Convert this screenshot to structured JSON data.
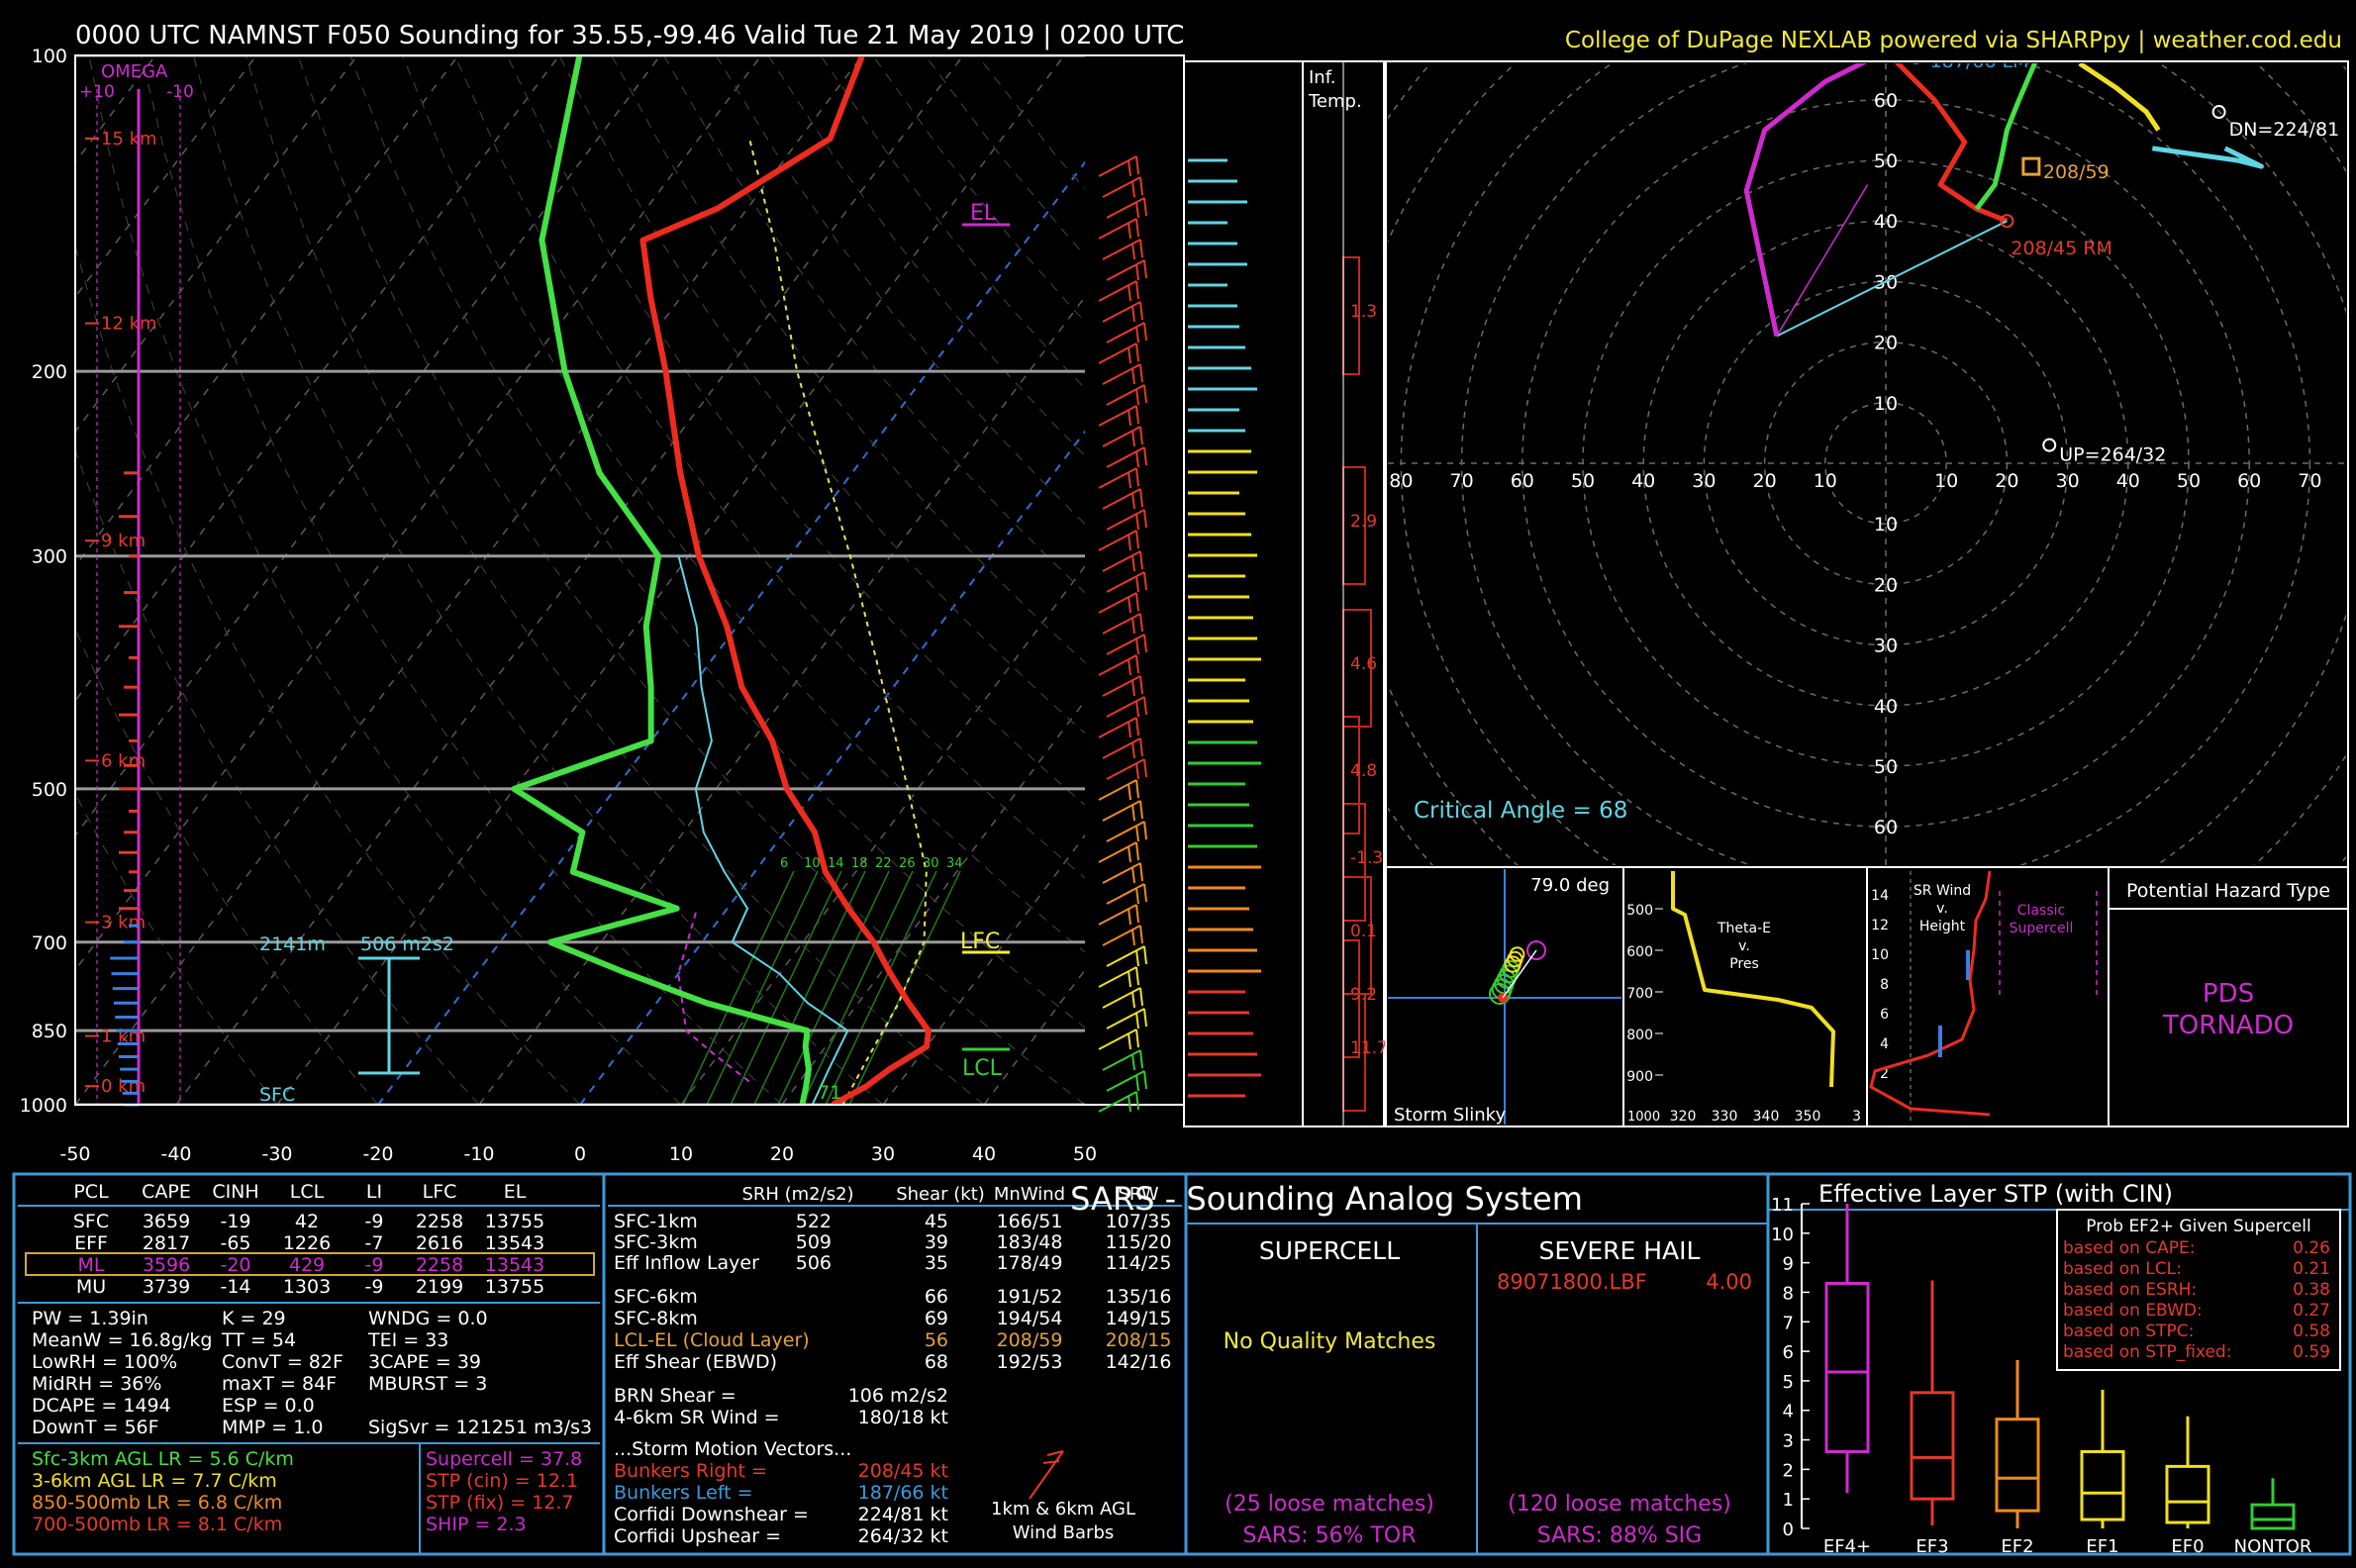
{
  "header": {
    "title": "0000 UTC NAMNST F050 Sounding for 35.55,-99.46 Valid  Tue 21 May 2019 | 0200 UTC",
    "credit": "College of DuPage NEXLAB powered via SHARPpy | weather.cod.edu"
  },
  "skewt": {
    "pressure_levels": [
      100,
      200,
      300,
      500,
      700,
      850,
      1000
    ],
    "temp_ticks": [
      -50,
      -40,
      -30,
      -20,
      -10,
      0,
      10,
      20,
      30,
      40,
      50
    ],
    "omega_label": "OMEGA",
    "omega_left": "+10",
    "omega_right": "-10",
    "height_labels": [
      "15 km",
      "12 km",
      "9 km",
      "6 km",
      "3 km",
      "1 km",
      "0 km"
    ],
    "height_pressures": [
      120,
      180,
      290,
      470,
      670,
      860,
      960
    ],
    "el_label": "EL",
    "lfc_label": "LFC",
    "lcl_label": "LCL",
    "el_pressure": 140,
    "lfc_pressure": 700,
    "lcl_pressure": 920,
    "eff_inflow_top": "2141m",
    "eff_srh": "506 m2s2",
    "sfc_label": "SFC",
    "sfc_temp": "71",
    "hail_isotherms": [
      "6",
      "10",
      "14",
      "18",
      "22",
      "26",
      "30",
      "34"
    ],
    "temperature": [
      [
        1000,
        25
      ],
      [
        960,
        27
      ],
      [
        925,
        28
      ],
      [
        880,
        30
      ],
      [
        850,
        29
      ],
      [
        800,
        25
      ],
      [
        750,
        21
      ],
      [
        700,
        17
      ],
      [
        650,
        12
      ],
      [
        600,
        7
      ],
      [
        550,
        3
      ],
      [
        500,
        -3
      ],
      [
        450,
        -8
      ],
      [
        400,
        -15
      ],
      [
        350,
        -21
      ],
      [
        300,
        -29
      ],
      [
        250,
        -37
      ],
      [
        200,
        -46
      ],
      [
        170,
        -53
      ],
      [
        150,
        -58
      ],
      [
        140,
        -53
      ],
      [
        120,
        -47
      ],
      [
        100,
        -50
      ]
    ],
    "dewpoint": [
      [
        1000,
        22
      ],
      [
        960,
        21
      ],
      [
        925,
        20
      ],
      [
        880,
        18
      ],
      [
        850,
        17
      ],
      [
        800,
        5
      ],
      [
        750,
        -5
      ],
      [
        700,
        -15
      ],
      [
        650,
        -5
      ],
      [
        600,
        -18
      ],
      [
        550,
        -20
      ],
      [
        500,
        -30
      ],
      [
        450,
        -20
      ],
      [
        400,
        -24
      ],
      [
        350,
        -29
      ],
      [
        300,
        -33
      ],
      [
        250,
        -45
      ],
      [
        200,
        -56
      ],
      [
        150,
        -68
      ],
      [
        100,
        -78
      ]
    ],
    "wetbulb": [
      [
        1000,
        23
      ],
      [
        925,
        22
      ],
      [
        850,
        21
      ],
      [
        800,
        15
      ],
      [
        750,
        10
      ],
      [
        700,
        3
      ],
      [
        650,
        2
      ],
      [
        600,
        -3
      ],
      [
        550,
        -8
      ],
      [
        500,
        -12
      ],
      [
        450,
        -14
      ],
      [
        400,
        -19
      ],
      [
        350,
        -24
      ],
      [
        300,
        -31
      ]
    ],
    "parcel": [
      [
        1000,
        26
      ],
      [
        900,
        25
      ],
      [
        800,
        24
      ],
      [
        700,
        22
      ],
      [
        600,
        17
      ],
      [
        500,
        9
      ],
      [
        400,
        -1
      ],
      [
        300,
        -14
      ],
      [
        200,
        -33
      ],
      [
        150,
        -45
      ],
      [
        120,
        -55
      ]
    ],
    "vtrace": [
      [
        950,
        15
      ],
      [
        900,
        10
      ],
      [
        850,
        5
      ],
      [
        750,
        0
      ],
      [
        650,
        -3
      ]
    ]
  },
  "inflow_panel": {
    "title1": "Inf.",
    "title2": "Temp.",
    "values": [
      "1.3",
      "2.9",
      "4.6",
      "4.8",
      "-1.3",
      "0.1",
      "9.2",
      "11.7"
    ]
  },
  "hodograph": {
    "rings": [
      "10",
      "20",
      "30",
      "40",
      "50",
      "60",
      "70",
      "80"
    ],
    "lm_label": "187/66 LM",
    "rm_label": "208/45 RM",
    "mean_label": "208/59",
    "dn_label": "DN=224/81",
    "up_label": "UP=264/32",
    "critical_angle": "Critical Angle = 68"
  },
  "storm_slinky": {
    "title": "Storm Slinky",
    "angle": "79.0 deg"
  },
  "thetae": {
    "title": "Theta-E v. Pres",
    "title_l1": "Theta-E",
    "title_l2": "v.",
    "title_l3": "Pres",
    "yticks": [
      "500",
      "600",
      "700",
      "800",
      "900"
    ],
    "xticks": [
      "320",
      "330",
      "340",
      "350"
    ],
    "corner_top": "3",
    "corner_bot": "1000"
  },
  "srwind": {
    "title_l1": "SR Wind",
    "title_l2": "v.",
    "title_l3": "Height",
    "yticks": [
      "14",
      "12",
      "10",
      "8",
      "6",
      "4",
      "2"
    ],
    "classic": "Classic",
    "supercell": "Supercell"
  },
  "hazard": {
    "title": "Potential Hazard Type",
    "line1": "PDS",
    "line2": "TORNADO"
  },
  "parcels": {
    "headers": [
      "PCL",
      "CAPE",
      "CINH",
      "LCL",
      "LI",
      "LFC",
      "EL"
    ],
    "rows": [
      [
        "SFC",
        "3659",
        "-19",
        "42",
        "-9",
        "2258",
        "13755"
      ],
      [
        "EFF",
        "2817",
        "-65",
        "1226",
        "-7",
        "2616",
        "13543"
      ],
      [
        "ML",
        "3596",
        "-20",
        "429",
        "-9",
        "2258",
        "13543"
      ],
      [
        "MU",
        "3739",
        "-14",
        "1303",
        "-9",
        "2199",
        "13755"
      ]
    ]
  },
  "indices": {
    "col1": [
      "PW = 1.39in",
      "MeanW = 16.8g/kg",
      "LowRH = 100%",
      "MidRH = 36%",
      "DCAPE = 1494",
      "DownT = 56F"
    ],
    "col2": [
      "K = 29",
      "TT = 54",
      "ConvT = 82F",
      "maxT = 84F",
      "ESP = 0.0",
      "MMP = 1.0"
    ],
    "col3": [
      "WNDG = 0.0",
      "TEI = 33",
      "3CAPE = 39",
      "MBURST = 3",
      "",
      ""
    ],
    "sigsvr": "SigSvr = 121251 m3/s3",
    "lapse": [
      "Sfc-3km AGL LR = 5.6 C/km",
      "3-6km AGL LR = 7.7 C/km",
      "850-500mb LR = 6.8 C/km",
      "700-500mb LR = 8.1 C/km"
    ],
    "composite": [
      "Supercell = 37.8",
      "STP (cin) = 12.1",
      "STP (fix) = 12.7",
      "SHIP = 2.3"
    ]
  },
  "kinematics": {
    "headers": [
      "SRH (m2/s2)",
      "Shear (kt)",
      "MnWind",
      "SRW"
    ],
    "rows": [
      [
        "SFC-1km",
        "522",
        "45",
        "166/51",
        "107/35"
      ],
      [
        "SFC-3km",
        "509",
        "39",
        "183/48",
        "115/20"
      ],
      [
        "Eff Inflow Layer",
        "506",
        "35",
        "178/49",
        "114/25"
      ],
      [
        "SFC-6km",
        "",
        "66",
        "191/52",
        "135/16"
      ],
      [
        "SFC-8km",
        "",
        "69",
        "194/54",
        "149/15"
      ],
      [
        "LCL-EL (Cloud Layer)",
        "",
        "56",
        "208/59",
        "208/15"
      ],
      [
        "Eff Shear (EBWD)",
        "",
        "68",
        "192/53",
        "142/16"
      ]
    ],
    "brn_label": "BRN Shear =",
    "brn_value": "106 m2/s2",
    "srwind_label": "4-6km SR Wind =",
    "srwind_value": "180/18 kt",
    "motion_title": "...Storm Motion Vectors...",
    "motion": [
      [
        "Bunkers Right =",
        "208/45 kt"
      ],
      [
        "Bunkers Left =",
        "187/66 kt"
      ],
      [
        "Corfidi Downshear =",
        "224/81 kt"
      ],
      [
        "Corfidi Upshear =",
        "264/32 kt"
      ]
    ],
    "barb_label1": "1km & 6km AGL",
    "barb_label2": "Wind Barbs"
  },
  "sars": {
    "title": "SARS - Sounding Analog System",
    "supercell_title": "SUPERCELL",
    "hail_title": "SEVERE HAIL",
    "hail_match": "89071800.LBF",
    "hail_size": "4.00",
    "no_match": "No Quality Matches",
    "sc_loose": "(25 loose matches)",
    "sc_pct": "SARS: 56% TOR",
    "hail_loose": "(120 loose matches)",
    "hail_pct": "SARS: 88% SIG"
  },
  "stp": {
    "title": "Effective Layer STP (with CIN)",
    "yticks": [
      "0",
      "1",
      "2",
      "3",
      "4",
      "5",
      "6",
      "7",
      "8",
      "9",
      "10",
      "11"
    ],
    "categories": [
      "EF4+",
      "EF3",
      "EF2",
      "EF1",
      "EF0",
      "NONTOR"
    ],
    "prob_title": "Prob EF2+ Given Supercell",
    "probs": [
      [
        "based on CAPE:",
        "0.26"
      ],
      [
        "based on LCL:",
        "0.21"
      ],
      [
        "based on ESRH:",
        "0.38"
      ],
      [
        "based on EBWD:",
        "0.27"
      ],
      [
        "based on STPC:",
        "0.58"
      ],
      [
        "based on STP_fixed:",
        "0.59"
      ]
    ]
  },
  "chart_data": {
    "type": "box",
    "title": "Effective Layer STP (with CIN)",
    "categories": [
      "EF4+",
      "EF3",
      "EF2",
      "EF1",
      "EF0",
      "NONTOR"
    ],
    "whisker_low": [
      1.2,
      0.1,
      0.0,
      0.0,
      0.0,
      0.0
    ],
    "q1": [
      2.6,
      1.0,
      0.6,
      0.3,
      0.2,
      0.0
    ],
    "median": [
      5.3,
      2.4,
      1.7,
      1.2,
      0.9,
      0.3
    ],
    "q3": [
      8.3,
      4.6,
      3.7,
      2.6,
      2.1,
      0.8
    ],
    "whisker_high": [
      11.0,
      8.4,
      5.7,
      4.7,
      3.8,
      1.7
    ],
    "ylim": [
      0,
      11
    ],
    "colors": [
      "#d02ad0",
      "#e5392b",
      "#f08a1f",
      "#f0e020",
      "#f0e020",
      "#33cc33"
    ]
  }
}
